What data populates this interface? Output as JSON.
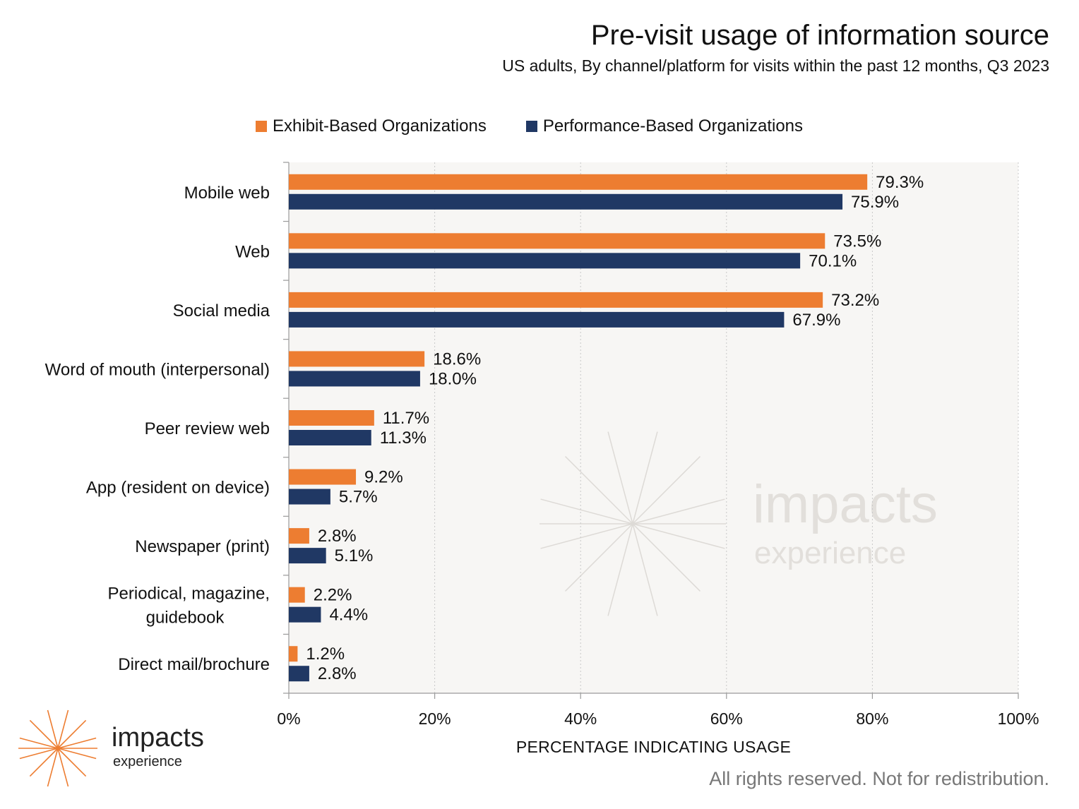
{
  "colors": {
    "exhibit": "#ED7D31",
    "performance": "#203864",
    "plot_bg": "#F7F6F4",
    "grid": "#C8C8C8"
  },
  "chart_data": {
    "type": "bar",
    "orientation": "horizontal",
    "title": "Pre-visit usage of information source",
    "subtitle": "US adults, By channel/platform for visits within the past 12 months, Q3 2023",
    "xlabel": "PERCENTAGE INDICATING USAGE",
    "ylabel": "",
    "xlim": [
      0,
      100
    ],
    "ticks": [
      "0%",
      "20%",
      "40%",
      "60%",
      "80%",
      "100%"
    ],
    "tick_values": [
      0,
      20,
      40,
      60,
      80,
      100
    ],
    "grid": true,
    "legend_position": "top",
    "categories": [
      "Mobile web",
      "Web",
      "Social media",
      "Word of mouth (interpersonal)",
      "Peer review web",
      "App (resident on device)",
      "Newspaper (print)",
      "Periodical, magazine,\nguidebook",
      "Direct mail/brochure"
    ],
    "series": [
      {
        "name": "Exhibit-Based Organizations",
        "color": "#ED7D31",
        "values": [
          79.3,
          73.5,
          73.2,
          18.6,
          11.7,
          9.2,
          2.8,
          2.2,
          1.2
        ],
        "labels": [
          "79.3%",
          "73.5%",
          "73.2%",
          "18.6%",
          "11.7%",
          "9.2%",
          "2.8%",
          "2.2%",
          "1.2%"
        ]
      },
      {
        "name": "Performance-Based Organizations",
        "color": "#203864",
        "values": [
          75.9,
          70.1,
          67.9,
          18.0,
          11.3,
          5.7,
          5.1,
          4.4,
          2.8
        ],
        "labels": [
          "75.9%",
          "70.1%",
          "67.9%",
          "18.0%",
          "11.3%",
          "5.7%",
          "5.1%",
          "4.4%",
          "2.8%"
        ]
      }
    ],
    "watermark": {
      "word": "impacts",
      "sub": "experience"
    }
  },
  "logo": {
    "word": "impacts",
    "sub": "experience"
  },
  "footer": {
    "copyright": "All rights reserved. Not for redistribution."
  }
}
